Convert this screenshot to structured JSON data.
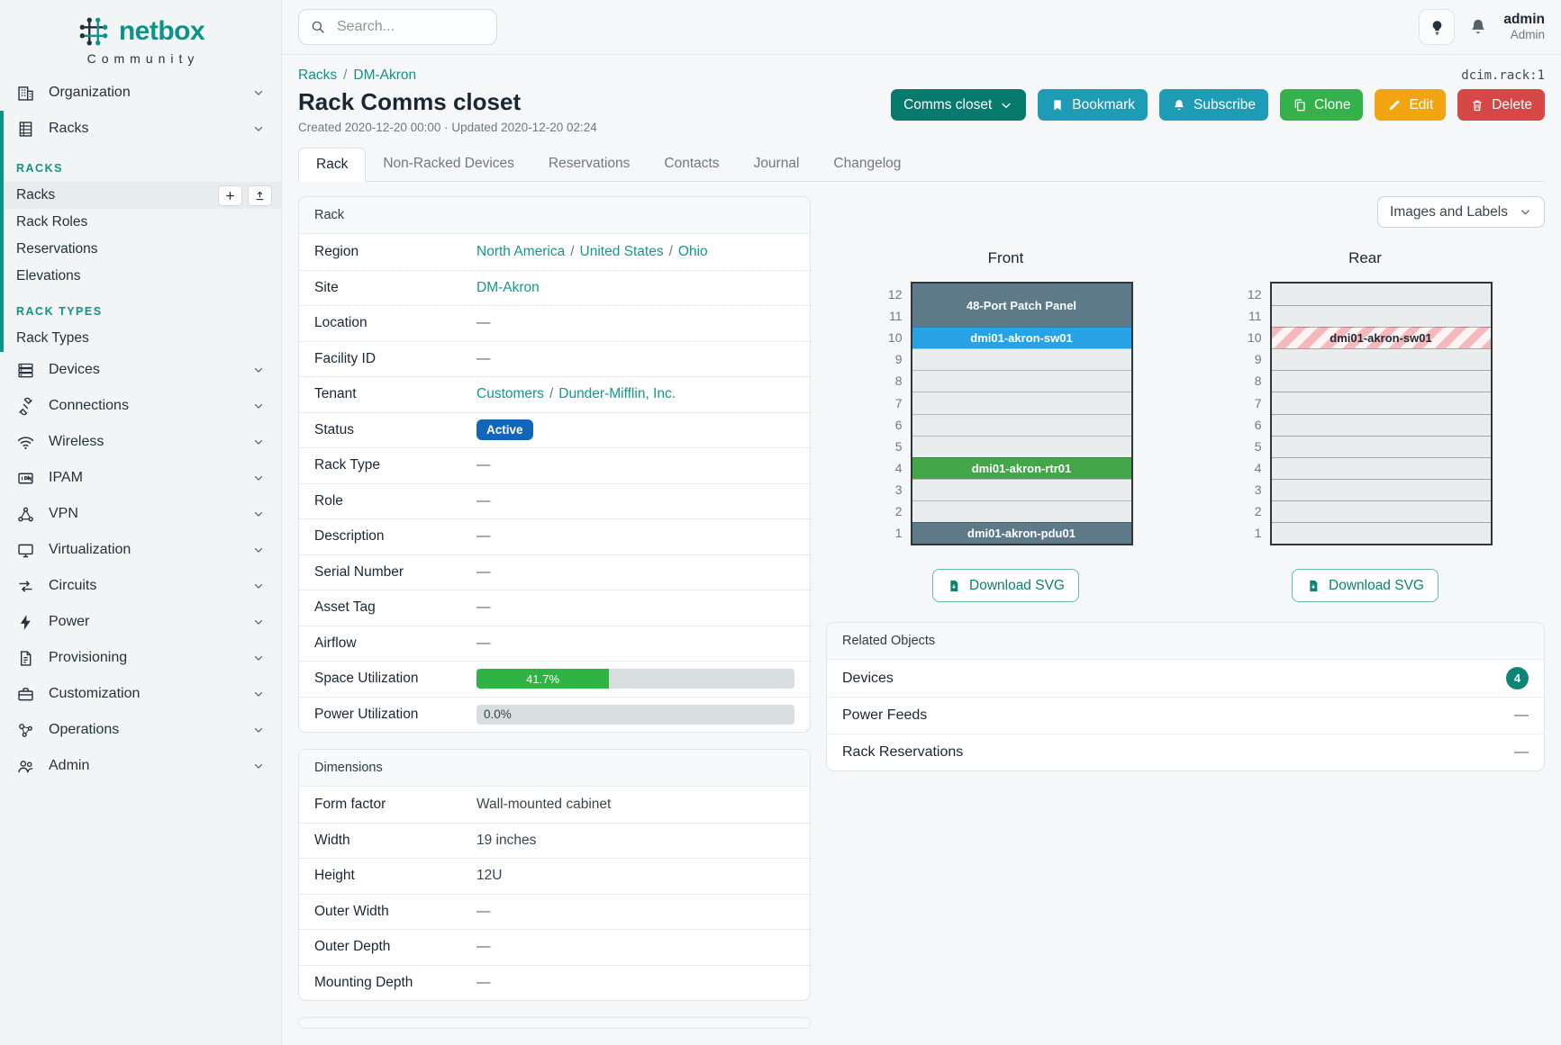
{
  "app": {
    "object_id": "dcim.rack:1"
  },
  "topbar": {
    "search_placeholder": "Search...",
    "user_name": "admin",
    "user_role": "Admin"
  },
  "sidebar": {
    "brand": "netbox",
    "brand_sub": "Community",
    "parents_before": [
      {
        "label": "Organization",
        "icon": "organization"
      }
    ],
    "racks_parent": {
      "label": "Racks",
      "icon": "racks"
    },
    "groups": [
      {
        "header": "RACKS",
        "items": [
          {
            "label": "Racks",
            "active": true,
            "buttons": [
              "plus",
              "upload"
            ]
          },
          {
            "label": "Rack Roles"
          },
          {
            "label": "Reservations"
          },
          {
            "label": "Elevations"
          }
        ]
      },
      {
        "header": "RACK TYPES",
        "items": [
          {
            "label": "Rack Types"
          }
        ]
      }
    ],
    "parents_after": [
      {
        "label": "Devices",
        "icon": "devices"
      },
      {
        "label": "Connections",
        "icon": "connections"
      },
      {
        "label": "Wireless",
        "icon": "wireless"
      },
      {
        "label": "IPAM",
        "icon": "ipam"
      },
      {
        "label": "VPN",
        "icon": "vpn"
      },
      {
        "label": "Virtualization",
        "icon": "virtualization"
      },
      {
        "label": "Circuits",
        "icon": "circuits"
      },
      {
        "label": "Power",
        "icon": "power"
      },
      {
        "label": "Provisioning",
        "icon": "provisioning"
      },
      {
        "label": "Customization",
        "icon": "customization"
      },
      {
        "label": "Operations",
        "icon": "operations"
      },
      {
        "label": "Admin",
        "icon": "admin"
      }
    ]
  },
  "page": {
    "breadcrumb": [
      {
        "label": "Racks"
      },
      {
        "label": "DM-Akron"
      }
    ],
    "title": "Rack Comms closet",
    "meta": "Created 2020-12-20 00:00 · Updated 2020-12-20 02:24",
    "actions": [
      {
        "label": "Comms closet",
        "icon_right": "chevron-down",
        "color": "#077a6e",
        "name": "comms-closet-dropdown"
      },
      {
        "label": "Bookmark",
        "icon": "bookmark",
        "color": "#1e9cb5",
        "name": "bookmark-button"
      },
      {
        "label": "Subscribe",
        "icon": "bell",
        "color": "#1e9cb5",
        "name": "subscribe-button"
      },
      {
        "label": "Clone",
        "icon": "copy",
        "color": "#35b14b",
        "name": "clone-button"
      },
      {
        "label": "Edit",
        "icon": "pencil",
        "color": "#f2a413",
        "name": "edit-button"
      },
      {
        "label": "Delete",
        "icon": "trash",
        "color": "#d64848",
        "name": "delete-button"
      }
    ],
    "tabs": [
      {
        "label": "Rack",
        "active": true
      },
      {
        "label": "Non-Racked Devices"
      },
      {
        "label": "Reservations"
      },
      {
        "label": "Contacts"
      },
      {
        "label": "Journal"
      },
      {
        "label": "Changelog"
      }
    ]
  },
  "rack_panel": {
    "title": "Rack",
    "rows": [
      {
        "label": "Region",
        "links": [
          "North America",
          "United States",
          "Ohio"
        ]
      },
      {
        "label": "Site",
        "links": [
          "DM-Akron"
        ]
      },
      {
        "label": "Location",
        "dash": true
      },
      {
        "label": "Facility ID",
        "dash": true
      },
      {
        "label": "Tenant",
        "links": [
          "Customers",
          "Dunder-Mifflin, Inc."
        ]
      },
      {
        "label": "Status",
        "badge": {
          "text": "Active",
          "color": "#1266b8"
        }
      },
      {
        "label": "Rack Type",
        "dash": true
      },
      {
        "label": "Role",
        "dash": true
      },
      {
        "label": "Description",
        "dash": true
      },
      {
        "label": "Serial Number",
        "dash": true
      },
      {
        "label": "Asset Tag",
        "dash": true
      },
      {
        "label": "Airflow",
        "dash": true
      },
      {
        "label": "Space Utilization",
        "progress": {
          "percent": 41.7,
          "label": "41.7%",
          "fill": "#2fb344"
        }
      },
      {
        "label": "Power Utilization",
        "progress": {
          "percent": 0,
          "label": "0.0%",
          "fill": "#2fb344"
        }
      }
    ]
  },
  "dimensions_panel": {
    "title": "Dimensions",
    "rows": [
      {
        "label": "Form factor",
        "text": "Wall-mounted cabinet"
      },
      {
        "label": "Width",
        "text": "19 inches"
      },
      {
        "label": "Height",
        "text": "12U"
      },
      {
        "label": "Outer Width",
        "dash": true
      },
      {
        "label": "Outer Depth",
        "dash": true
      },
      {
        "label": "Mounting Depth",
        "dash": true
      }
    ]
  },
  "elevations": {
    "view_selector": "Images and Labels",
    "download_label": "Download SVG",
    "unit_count": 12,
    "views": [
      {
        "title": "Front",
        "slots": [
          {
            "top_u": 12,
            "span": 2,
            "label": "48-Port Patch Panel",
            "color": "#5e7988"
          },
          {
            "top_u": 10,
            "span": 1,
            "label": "dmi01-akron-sw01",
            "color": "#27a2e6"
          },
          {
            "top_u": 9,
            "span": 1
          },
          {
            "top_u": 8,
            "span": 1
          },
          {
            "top_u": 7,
            "span": 1
          },
          {
            "top_u": 6,
            "span": 1
          },
          {
            "top_u": 5,
            "span": 1
          },
          {
            "top_u": 4,
            "span": 1,
            "label": "dmi01-akron-rtr01",
            "color": "#43a648"
          },
          {
            "top_u": 3,
            "span": 1
          },
          {
            "top_u": 2,
            "span": 1
          },
          {
            "top_u": 1,
            "span": 1,
            "label": "dmi01-akron-pdu01",
            "color": "#5e7988"
          }
        ]
      },
      {
        "title": "Rear",
        "slots": [
          {
            "top_u": 12,
            "span": 1
          },
          {
            "top_u": 11,
            "span": 1
          },
          {
            "top_u": 10,
            "span": 1,
            "label": "dmi01-akron-sw01",
            "striped": true
          },
          {
            "top_u": 9,
            "span": 1
          },
          {
            "top_u": 8,
            "span": 1
          },
          {
            "top_u": 7,
            "span": 1
          },
          {
            "top_u": 6,
            "span": 1
          },
          {
            "top_u": 5,
            "span": 1
          },
          {
            "top_u": 4,
            "span": 1
          },
          {
            "top_u": 3,
            "span": 1
          },
          {
            "top_u": 2,
            "span": 1
          },
          {
            "top_u": 1,
            "span": 1
          }
        ]
      }
    ]
  },
  "related_objects": {
    "title": "Related Objects",
    "rows": [
      {
        "label": "Devices",
        "count": "4"
      },
      {
        "label": "Power Feeds",
        "dash": true
      },
      {
        "label": "Rack Reservations",
        "dash": true
      }
    ]
  },
  "colors": {
    "accent": "#0d9488",
    "link": "#12998a",
    "count_badge": "#0c8577",
    "status_active": "#1266b8"
  }
}
